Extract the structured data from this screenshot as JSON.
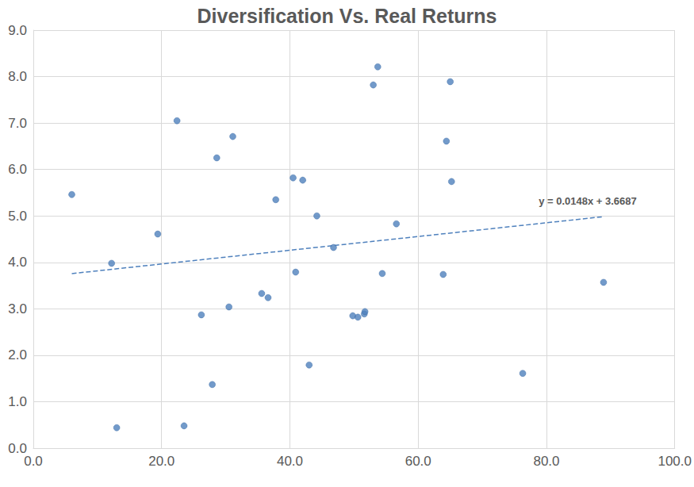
{
  "chart_data": {
    "type": "scatter",
    "title": "Diversification Vs. Real Returns",
    "color": "#4f81bd",
    "marker": "circle",
    "grid": true,
    "x": [
      6.0,
      12.2,
      13.0,
      19.4,
      22.4,
      23.5,
      26.2,
      27.9,
      28.6,
      30.5,
      31.1,
      35.6,
      36.6,
      37.8,
      40.5,
      40.9,
      42.0,
      43.0,
      44.2,
      46.8,
      49.8,
      50.6,
      51.6,
      51.7,
      53.0,
      53.7,
      54.4,
      56.6,
      63.9,
      64.4,
      65.0,
      65.2,
      76.3,
      88.9
    ],
    "values": [
      5.46,
      3.98,
      0.44,
      4.61,
      7.05,
      0.48,
      2.87,
      1.37,
      6.25,
      3.04,
      6.71,
      3.33,
      3.24,
      5.35,
      5.82,
      3.79,
      5.77,
      1.79,
      5.0,
      4.32,
      2.85,
      2.82,
      2.89,
      2.94,
      7.82,
      8.21,
      3.76,
      4.83,
      3.74,
      6.61,
      7.89,
      5.74,
      1.61,
      3.57
    ],
    "xlim": [
      0,
      100
    ],
    "xticks": [
      {
        "value": 0,
        "label": "0.0"
      },
      {
        "value": 20,
        "label": "20.0"
      },
      {
        "value": 40,
        "label": "40.0"
      },
      {
        "value": 60,
        "label": "60.0"
      },
      {
        "value": 80,
        "label": "80.0"
      },
      {
        "value": 100,
        "label": "100.0"
      }
    ],
    "ylim": [
      0,
      9
    ],
    "yticks": [
      {
        "value": 0,
        "label": "0.0"
      },
      {
        "value": 1,
        "label": "1.0"
      },
      {
        "value": 2,
        "label": "2.0"
      },
      {
        "value": 3,
        "label": "3.0"
      },
      {
        "value": 4,
        "label": "4.0"
      },
      {
        "value": 5,
        "label": "5.0"
      },
      {
        "value": 6,
        "label": "6.0"
      },
      {
        "value": 7,
        "label": "7.0"
      },
      {
        "value": 8,
        "label": "8.0"
      },
      {
        "value": 9,
        "label": "9.0"
      }
    ],
    "trendline": {
      "label": "y = 0.0148x + 3.6687",
      "x": [
        6.0,
        88.9
      ],
      "values": [
        3.758,
        4.984
      ],
      "color": "#4f81bd",
      "line_style": "dashed"
    }
  }
}
